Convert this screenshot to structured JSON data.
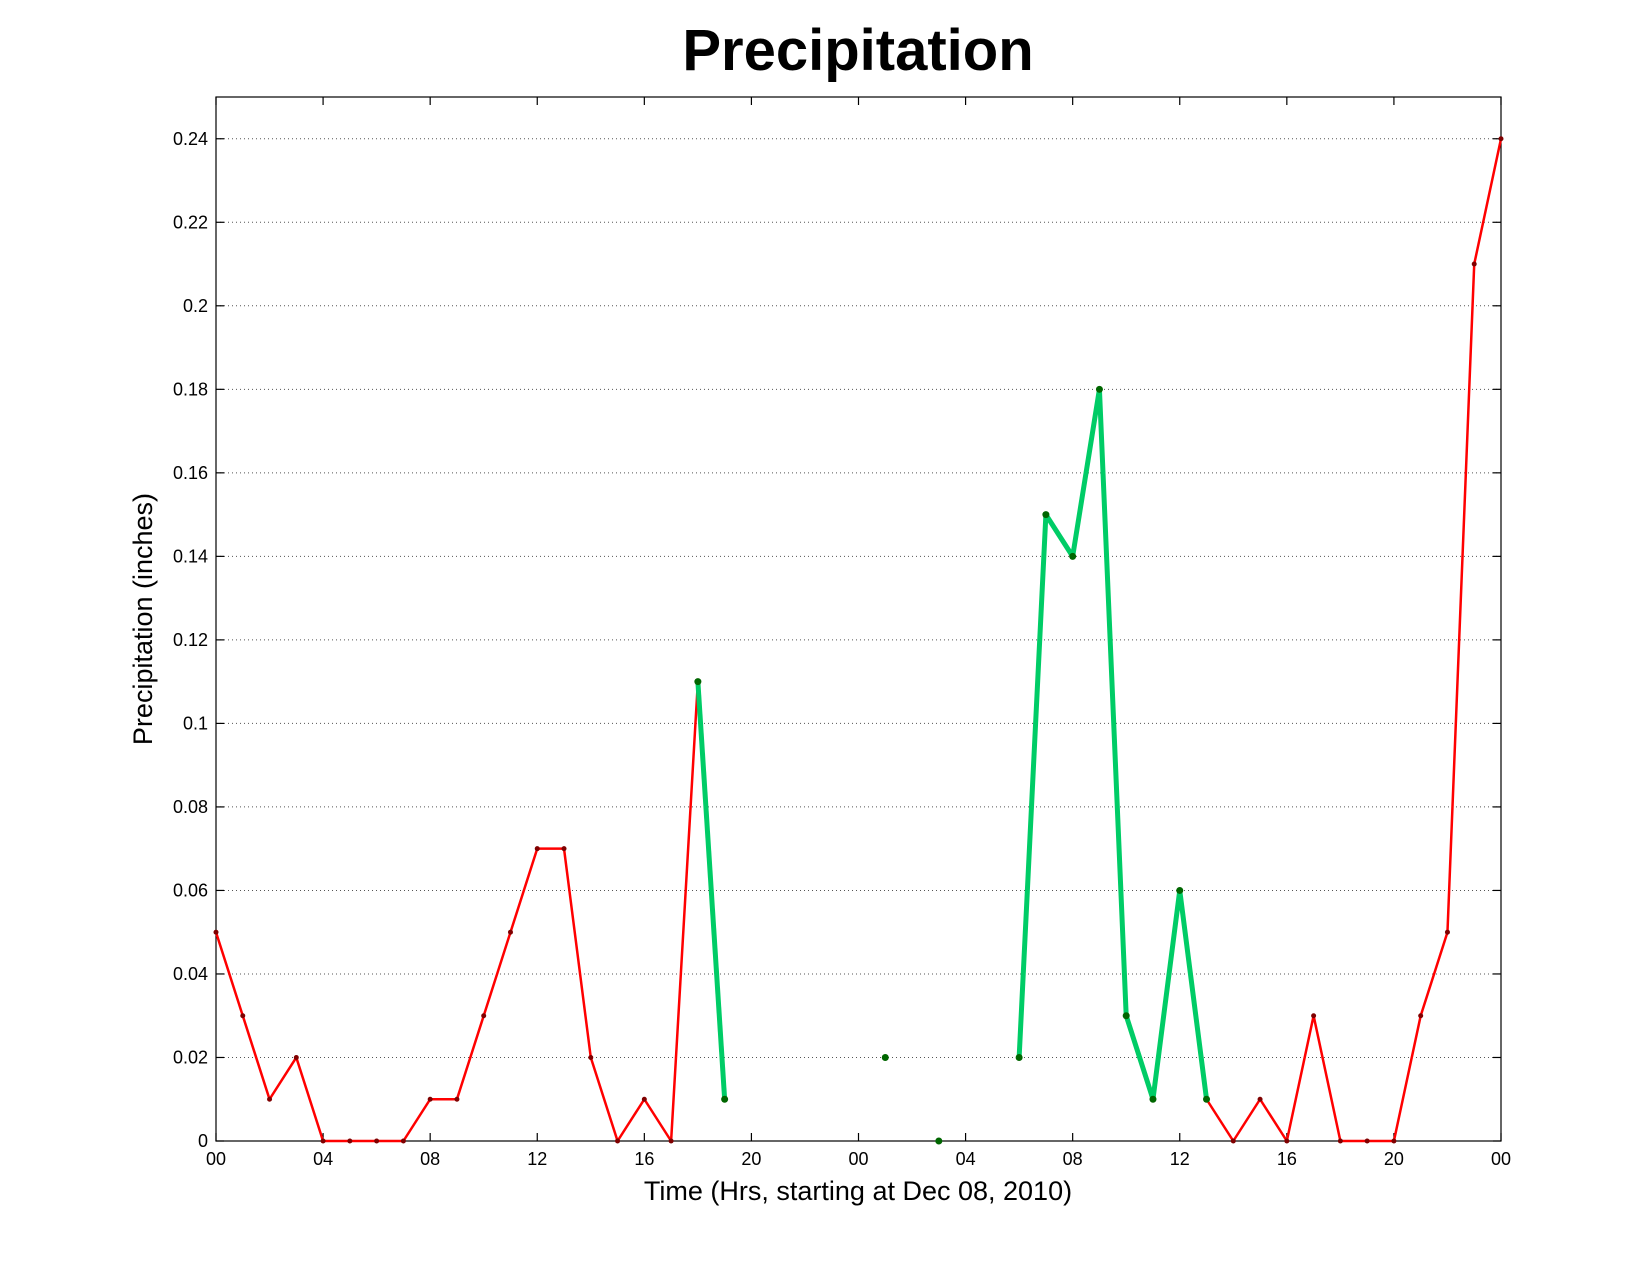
{
  "chart_data": {
    "type": "line",
    "title": "Precipitation",
    "xlabel": "Time (Hrs, starting at Dec 08, 2010)",
    "ylabel": "Precipitation (inches)",
    "ylim": [
      0,
      0.25
    ],
    "xlim": [
      0,
      48
    ],
    "x_tick_positions": [
      0,
      4,
      8,
      12,
      16,
      20,
      24,
      28,
      32,
      36,
      40,
      44,
      48
    ],
    "x_tick_labels": [
      "00",
      "04",
      "08",
      "12",
      "16",
      "20",
      "00",
      "04",
      "08",
      "12",
      "16",
      "20",
      "00"
    ],
    "y_ticks": [
      0,
      0.02,
      0.04,
      0.06,
      0.08,
      0.1,
      0.12,
      0.14,
      0.16,
      0.18,
      0.2,
      0.22,
      0.24
    ],
    "y_tick_labels": [
      "0",
      "0.02",
      "0.04",
      "0.06",
      "0.08",
      "0.1",
      "0.12",
      "0.14",
      "0.16",
      "0.18",
      "0.2",
      "0.22",
      "0.24"
    ],
    "grid": true,
    "series": [
      {
        "color": "#ff0000",
        "marker_color": "#800000",
        "points": [
          [
            0,
            0.05
          ],
          [
            1,
            0.03
          ],
          [
            2,
            0.01
          ],
          [
            3,
            0.02
          ],
          [
            4,
            0
          ],
          [
            5,
            0
          ],
          [
            6,
            0
          ],
          [
            7,
            0
          ],
          [
            8,
            0.01
          ],
          [
            9,
            0.01
          ],
          [
            10,
            0.03
          ],
          [
            11,
            0.05
          ],
          [
            12,
            0.07
          ],
          [
            13,
            0.07
          ],
          [
            14,
            0.02
          ],
          [
            15,
            0
          ],
          [
            16,
            0.01
          ],
          [
            17,
            0
          ],
          [
            18,
            0.11
          ],
          [
            37,
            0.01
          ],
          [
            38,
            0
          ],
          [
            39,
            0.01
          ],
          [
            40,
            0
          ],
          [
            41,
            0.03
          ],
          [
            42,
            0
          ],
          [
            43,
            0
          ],
          [
            44,
            0
          ],
          [
            45,
            0.03
          ],
          [
            46,
            0.05
          ],
          [
            47,
            0.21
          ],
          [
            48,
            0.24
          ]
        ]
      },
      {
        "color": "#00cc66",
        "marker_color": "#006600",
        "segments": [
          [
            [
              18,
              0.11
            ],
            [
              19,
              0.01
            ]
          ],
          [
            [
              25,
              0.02
            ]
          ],
          [
            [
              27,
              0
            ]
          ],
          [
            [
              30,
              0.02
            ],
            [
              31,
              0.15
            ],
            [
              32,
              0.14
            ],
            [
              33,
              0.18
            ],
            [
              34,
              0.03
            ],
            [
              35,
              0.01
            ],
            [
              36,
              0.06
            ],
            [
              37,
              0.01
            ]
          ]
        ]
      }
    ]
  }
}
